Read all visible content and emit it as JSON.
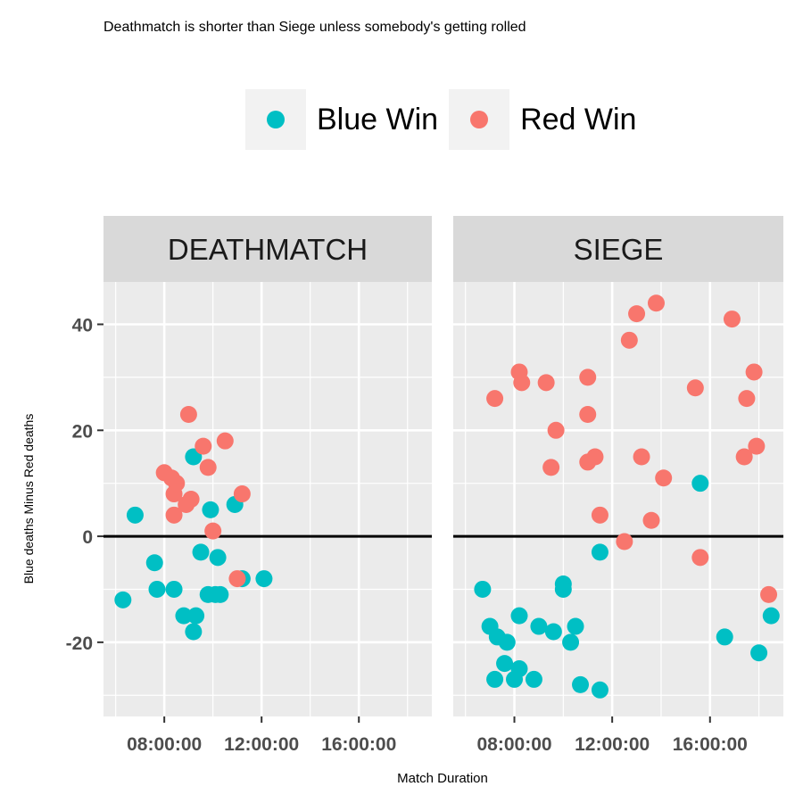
{
  "chart_data": {
    "type": "scatter",
    "title": "Deathmatch is shorter than Siege unless somebody's getting rolled",
    "xlabel": "Match Duration",
    "ylabel": "Blue deaths Minus Red deaths",
    "x_tick_labels": [
      "08:00:00",
      "12:00:00",
      "16:00:00"
    ],
    "y_tick_labels": [
      "-20",
      "0",
      "20",
      "40"
    ],
    "x_unit": "hours",
    "xlim": [
      5.5,
      19.0
    ],
    "ylim": [
      -34,
      48
    ],
    "x_ticks": [
      8,
      12,
      16
    ],
    "x_minor_ticks": [
      6,
      10,
      14,
      18
    ],
    "y_ticks": [
      -20,
      0,
      20,
      40
    ],
    "y_minor_ticks": [
      -30,
      -10,
      10,
      30
    ],
    "hline": 0,
    "grid": true,
    "legend_position": "top",
    "colors": {
      "Blue Win": "#00bfc4",
      "Red Win": "#f8766d"
    },
    "series": [
      {
        "name": "Blue Win",
        "color": "#00bfc4"
      },
      {
        "name": "Red Win",
        "color": "#f8766d"
      }
    ],
    "panels": [
      {
        "name": "DEATHMATCH",
        "points": [
          {
            "x": 6.3,
            "y": -12,
            "series": "Blue Win"
          },
          {
            "x": 6.8,
            "y": 4,
            "series": "Blue Win"
          },
          {
            "x": 7.6,
            "y": -5,
            "series": "Blue Win"
          },
          {
            "x": 7.7,
            "y": -10,
            "series": "Blue Win"
          },
          {
            "x": 8.4,
            "y": -10,
            "series": "Blue Win"
          },
          {
            "x": 8.8,
            "y": -15,
            "series": "Blue Win"
          },
          {
            "x": 9.2,
            "y": -18,
            "series": "Blue Win"
          },
          {
            "x": 9.3,
            "y": -15,
            "series": "Blue Win"
          },
          {
            "x": 9.2,
            "y": 15,
            "series": "Blue Win"
          },
          {
            "x": 9.5,
            "y": -3,
            "series": "Blue Win"
          },
          {
            "x": 9.8,
            "y": -11,
            "series": "Blue Win"
          },
          {
            "x": 9.9,
            "y": 5,
            "series": "Blue Win"
          },
          {
            "x": 10.1,
            "y": -11,
            "series": "Blue Win"
          },
          {
            "x": 10.2,
            "y": -4,
            "series": "Blue Win"
          },
          {
            "x": 10.3,
            "y": -11,
            "series": "Blue Win"
          },
          {
            "x": 10.9,
            "y": 6,
            "series": "Blue Win"
          },
          {
            "x": 11.2,
            "y": -8,
            "series": "Blue Win"
          },
          {
            "x": 12.1,
            "y": -8,
            "series": "Blue Win"
          },
          {
            "x": 8.0,
            "y": 12,
            "series": "Red Win"
          },
          {
            "x": 8.3,
            "y": 11,
            "series": "Red Win"
          },
          {
            "x": 8.4,
            "y": 8,
            "series": "Red Win"
          },
          {
            "x": 8.4,
            "y": 4,
            "series": "Red Win"
          },
          {
            "x": 8.5,
            "y": 10,
            "series": "Red Win"
          },
          {
            "x": 8.9,
            "y": 6,
            "series": "Red Win"
          },
          {
            "x": 9.0,
            "y": 23,
            "series": "Red Win"
          },
          {
            "x": 9.1,
            "y": 7,
            "series": "Red Win"
          },
          {
            "x": 9.6,
            "y": 17,
            "series": "Red Win"
          },
          {
            "x": 9.8,
            "y": 13,
            "series": "Red Win"
          },
          {
            "x": 10.0,
            "y": 1,
            "series": "Red Win"
          },
          {
            "x": 10.5,
            "y": 18,
            "series": "Red Win"
          },
          {
            "x": 11.0,
            "y": -8,
            "series": "Red Win"
          },
          {
            "x": 11.2,
            "y": 8,
            "series": "Red Win"
          }
        ]
      },
      {
        "name": "SIEGE",
        "points": [
          {
            "x": 6.7,
            "y": -10,
            "series": "Blue Win"
          },
          {
            "x": 7.0,
            "y": -17,
            "series": "Blue Win"
          },
          {
            "x": 7.3,
            "y": -19,
            "series": "Blue Win"
          },
          {
            "x": 7.2,
            "y": -27,
            "series": "Blue Win"
          },
          {
            "x": 7.6,
            "y": -24,
            "series": "Blue Win"
          },
          {
            "x": 7.7,
            "y": -20,
            "series": "Blue Win"
          },
          {
            "x": 8.0,
            "y": -27,
            "series": "Blue Win"
          },
          {
            "x": 8.2,
            "y": -25,
            "series": "Blue Win"
          },
          {
            "x": 8.2,
            "y": -15,
            "series": "Blue Win"
          },
          {
            "x": 8.8,
            "y": -27,
            "series": "Blue Win"
          },
          {
            "x": 9.0,
            "y": -17,
            "series": "Blue Win"
          },
          {
            "x": 9.6,
            "y": -18,
            "series": "Blue Win"
          },
          {
            "x": 10.0,
            "y": -9,
            "series": "Blue Win"
          },
          {
            "x": 10.0,
            "y": -10,
            "series": "Blue Win"
          },
          {
            "x": 10.3,
            "y": -20,
            "series": "Blue Win"
          },
          {
            "x": 10.5,
            "y": -17,
            "series": "Blue Win"
          },
          {
            "x": 10.7,
            "y": -28,
            "series": "Blue Win"
          },
          {
            "x": 11.5,
            "y": -3,
            "series": "Blue Win"
          },
          {
            "x": 11.5,
            "y": -29,
            "series": "Blue Win"
          },
          {
            "x": 15.6,
            "y": 10,
            "series": "Blue Win"
          },
          {
            "x": 16.6,
            "y": -19,
            "series": "Blue Win"
          },
          {
            "x": 18.0,
            "y": -22,
            "series": "Blue Win"
          },
          {
            "x": 18.5,
            "y": -15,
            "series": "Blue Win"
          },
          {
            "x": 7.2,
            "y": 26,
            "series": "Red Win"
          },
          {
            "x": 8.2,
            "y": 31,
            "series": "Red Win"
          },
          {
            "x": 8.3,
            "y": 29,
            "series": "Red Win"
          },
          {
            "x": 9.3,
            "y": 29,
            "series": "Red Win"
          },
          {
            "x": 9.5,
            "y": 13,
            "series": "Red Win"
          },
          {
            "x": 9.7,
            "y": 20,
            "series": "Red Win"
          },
          {
            "x": 11.0,
            "y": 30,
            "series": "Red Win"
          },
          {
            "x": 11.0,
            "y": 23,
            "series": "Red Win"
          },
          {
            "x": 11.0,
            "y": 14,
            "series": "Red Win"
          },
          {
            "x": 11.3,
            "y": 15,
            "series": "Red Win"
          },
          {
            "x": 11.5,
            "y": 4,
            "series": "Red Win"
          },
          {
            "x": 12.5,
            "y": -1,
            "series": "Red Win"
          },
          {
            "x": 12.7,
            "y": 37,
            "series": "Red Win"
          },
          {
            "x": 13.0,
            "y": 42,
            "series": "Red Win"
          },
          {
            "x": 13.2,
            "y": 15,
            "series": "Red Win"
          },
          {
            "x": 13.6,
            "y": 3,
            "series": "Red Win"
          },
          {
            "x": 13.8,
            "y": 44,
            "series": "Red Win"
          },
          {
            "x": 14.1,
            "y": 11,
            "series": "Red Win"
          },
          {
            "x": 15.4,
            "y": 28,
            "series": "Red Win"
          },
          {
            "x": 15.6,
            "y": -4,
            "series": "Red Win"
          },
          {
            "x": 16.9,
            "y": 41,
            "series": "Red Win"
          },
          {
            "x": 17.4,
            "y": 15,
            "series": "Red Win"
          },
          {
            "x": 17.5,
            "y": 26,
            "series": "Red Win"
          },
          {
            "x": 17.8,
            "y": 31,
            "series": "Red Win"
          },
          {
            "x": 17.9,
            "y": 17,
            "series": "Red Win"
          },
          {
            "x": 18.4,
            "y": -11,
            "series": "Red Win"
          }
        ]
      }
    ]
  }
}
